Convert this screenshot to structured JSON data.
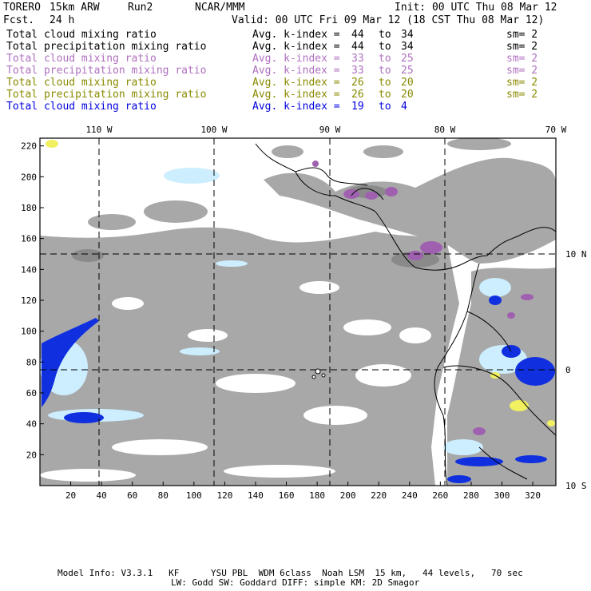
{
  "header": {
    "model": "TORERO",
    "resolution": "15km ARW",
    "run": "Run2",
    "org": "NCAR/MMM",
    "init": "Init: 00 UTC Thu 08 Mar 12",
    "fcst_label": "Fcst.",
    "fcst_value": "24 h",
    "valid": "Valid: 00 UTC Fri 09 Mar 12 (18 CST Thu 08 Mar 12)"
  },
  "legend": [
    {
      "field": "Total cloud mixing ratio",
      "label": "Avg. k-index =",
      "from": "44",
      "to_word": "to",
      "to": "34",
      "sm": "sm= 2",
      "color": "#000000"
    },
    {
      "field": "Total precipitation mixing ratio",
      "label": "Avg. k-index =",
      "from": "44",
      "to_word": "to",
      "to": "34",
      "sm": "sm= 2",
      "color": "#000000"
    },
    {
      "field": "Total cloud mixing ratio",
      "label": "Avg. k-index =",
      "from": "33",
      "to_word": "to",
      "to": "25",
      "sm": "sm= 2",
      "color": "#b070c0"
    },
    {
      "field": "Total precipitation mixing ratio",
      "label": "Avg. k-index =",
      "from": "33",
      "to_word": "to",
      "to": "25",
      "sm": "sm= 2",
      "color": "#b070c0"
    },
    {
      "field": "Total cloud mixing ratio",
      "label": "Avg. k-index =",
      "from": "26",
      "to_word": "to",
      "to": "20",
      "sm": "sm= 2",
      "color": "#8a8a00"
    },
    {
      "field": "Total precipitation mixing ratio",
      "label": "Avg. k-index =",
      "from": "26",
      "to_word": "to",
      "to": "20",
      "sm": "sm= 2",
      "color": "#8a8a00"
    },
    {
      "field": "Total cloud mixing ratio",
      "label": "Avg. k-index =",
      "from": "19",
      "to_word": "to",
      "to": "4",
      "sm": "",
      "color": "#0000e0"
    }
  ],
  "map": {
    "lon_labels": [
      "110 W",
      "100 W",
      "90 W",
      "80 W",
      "70 W"
    ],
    "lat_labels": [
      "10 N",
      "0",
      "10 S"
    ],
    "x_ticks": [
      "20",
      "40",
      "60",
      "80",
      "100",
      "120",
      "140",
      "160",
      "180",
      "200",
      "220",
      "240",
      "260",
      "280",
      "300",
      "320"
    ],
    "y_ticks": [
      "20",
      "40",
      "60",
      "80",
      "100",
      "120",
      "140",
      "160",
      "180",
      "200",
      "220"
    ],
    "colors": {
      "cloud": "#a8a8a8",
      "cloud_dark": "#8a8a8a",
      "precip_light": "#cceeff",
      "precip_blue": "#1030e0",
      "purple": "#a060b0",
      "yellow": "#f0f060"
    }
  },
  "footer": {
    "line1": "Model Info: V3.3.1   KF      YSU PBL  WDM 6class  Noah LSM  15 km,   44 levels,   70 sec",
    "line2": "LW: Godd SW: Goddard DIFF: simple KM: 2D Smagor"
  }
}
